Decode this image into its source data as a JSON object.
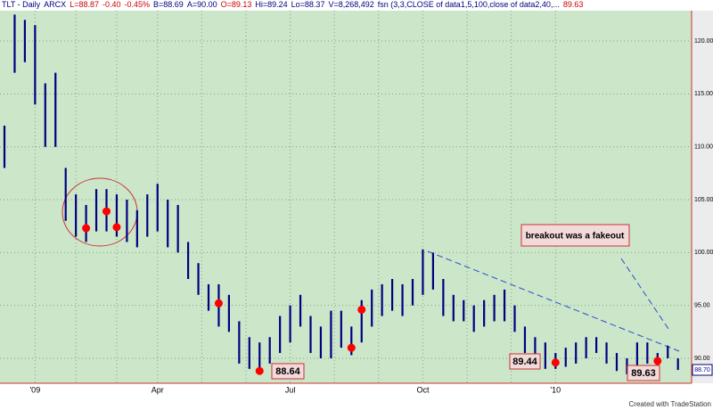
{
  "chart_data": {
    "type": "hilo",
    "header": [
      {
        "text": "TLT - Daily",
        "color": "#000080"
      },
      {
        "text": "ARCX",
        "color": "#000080"
      },
      {
        "text": "L=88.87",
        "color": "#cc0000"
      },
      {
        "text": "-0.40",
        "color": "#cc0000"
      },
      {
        "text": "-0.45%",
        "color": "#cc0000"
      },
      {
        "text": "B=88.69",
        "color": "#000080"
      },
      {
        "text": "A=90.00",
        "color": "#000080"
      },
      {
        "text": "O=89.13",
        "color": "#cc0000"
      },
      {
        "text": "Hi=89.24",
        "color": "#000080"
      },
      {
        "text": "Lo=88.37",
        "color": "#000080"
      },
      {
        "text": "V=8,268,492",
        "color": "#000080"
      },
      {
        "text": "fsn (3,3,CLOSE of data1,5,100,close of data2,40,...",
        "color": "#000080"
      },
      {
        "text": "89.63",
        "color": "#cc0000"
      }
    ],
    "categories": [
      null,
      null,
      null,
      "'09",
      null,
      null,
      null,
      null,
      null,
      null,
      null,
      null,
      null,
      null,
      null,
      "Apr",
      null,
      null,
      null,
      null,
      null,
      null,
      null,
      null,
      null,
      null,
      null,
      null,
      "Jul",
      null,
      null,
      null,
      null,
      null,
      null,
      null,
      null,
      null,
      null,
      null,
      null,
      "Oct",
      null,
      null,
      null,
      null,
      null,
      null,
      null,
      null,
      null,
      null,
      null,
      null,
      "'10",
      null,
      null,
      null,
      null,
      null,
      null,
      null,
      null,
      null,
      null,
      null,
      null
    ],
    "high": [
      112,
      122.5,
      122,
      121.5,
      116,
      117,
      108,
      105.5,
      104.5,
      106,
      106,
      105.5,
      105,
      104,
      105.5,
      106.5,
      105,
      104.5,
      101,
      99,
      97,
      97,
      96,
      93.5,
      92,
      91.5,
      92,
      94,
      95,
      96,
      94,
      93,
      94.5,
      94.5,
      93,
      95.5,
      96.5,
      97,
      97.5,
      97,
      97.5,
      100.3,
      100,
      97.5,
      96,
      95.5,
      95,
      95.5,
      96,
      96.5,
      95,
      93,
      92,
      91.5,
      90.5,
      91,
      91.5,
      92,
      92,
      91.5,
      90.5,
      90,
      91.5,
      91.5,
      90.5,
      91.2,
      90
    ],
    "low": [
      108,
      117,
      118,
      114,
      110,
      110,
      103,
      101.5,
      101,
      102,
      102,
      101.5,
      101,
      100.5,
      101.5,
      102,
      100.5,
      100,
      97.5,
      96,
      94.5,
      93,
      92.5,
      89.5,
      89,
      88.6,
      89.5,
      90.5,
      91.5,
      93,
      90.5,
      90,
      90,
      91,
      90.3,
      91.5,
      93,
      94,
      94.5,
      94,
      95,
      96,
      96.5,
      94,
      93.5,
      93.5,
      92.5,
      93,
      93.5,
      93.5,
      92.5,
      90.5,
      89.5,
      89,
      89,
      89.2,
      89.5,
      90,
      90.5,
      89.5,
      88.8,
      88.5,
      89,
      89.5,
      89,
      90,
      88.9
    ],
    "signals": [
      null,
      null,
      null,
      null,
      null,
      null,
      null,
      null,
      102.3,
      null,
      103.9,
      102.4,
      null,
      null,
      null,
      null,
      null,
      null,
      null,
      null,
      null,
      95.2,
      null,
      null,
      null,
      88.8,
      null,
      null,
      null,
      null,
      null,
      null,
      null,
      null,
      91.0,
      94.6,
      null,
      null,
      null,
      null,
      null,
      null,
      null,
      null,
      null,
      null,
      null,
      null,
      null,
      null,
      null,
      null,
      null,
      null,
      89.6,
      null,
      null,
      null,
      null,
      null,
      null,
      null,
      null,
      null,
      89.75,
      null,
      null
    ],
    "bar_color": "#000080",
    "signal_color": "#ff0000",
    "ylim": [
      87.64,
      122.87
    ],
    "yticks": [
      {
        "value": 90,
        "label": "90.00"
      },
      {
        "value": 95,
        "label": "95.00"
      },
      {
        "value": 100,
        "label": "100.00"
      },
      {
        "value": 105,
        "label": "105.00"
      },
      {
        "value": 110,
        "label": "110.00"
      },
      {
        "value": 115,
        "label": "115.00"
      },
      {
        "value": 120,
        "label": "120.00"
      }
    ],
    "grid": true,
    "last_label": "88.70",
    "annotations": [
      "88.64",
      "89.44",
      "89.63",
      "breakout was a fakeout"
    ],
    "footer": "Created with TradeStation"
  }
}
